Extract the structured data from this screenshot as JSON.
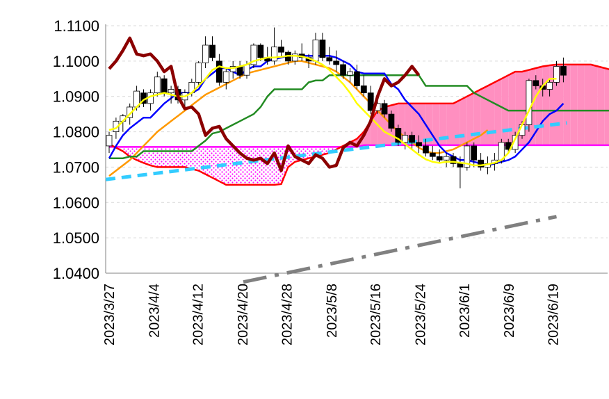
{
  "chart_data": {
    "type": "candlestick",
    "title": "",
    "xlabel": "",
    "ylabel": "",
    "ylim": [
      1.04,
      1.11
    ],
    "yticks": [
      "1.0400",
      "1.0500",
      "1.0600",
      "1.0700",
      "1.0800",
      "1.0900",
      "1.1000",
      "1.1100"
    ],
    "xticks": [
      "2023/3/27",
      "2023/4/4",
      "2023/4/12",
      "2023/4/20",
      "2023/4/28",
      "2023/5/8",
      "2023/5/16",
      "2023/5/24",
      "2023/6/1",
      "2023/6/9",
      "2023/6/19"
    ],
    "grid": true,
    "legend": "none",
    "colors": {
      "candle_up": "#ffffff",
      "candle_down": "#000000",
      "chikou": "#8b0000",
      "span_a": "#ff0000",
      "span_b": "#ff00ff",
      "cloud_bull": "#ff8fc0",
      "cloud_bear": "#ffb6e6",
      "kijun": "#228b22",
      "tenkan": "#0000ff",
      "ma_short": "#ffff00",
      "ma_long": "#ff9900",
      "trend_upper": "#33ccff",
      "trend_lower": "#808080"
    },
    "candles": [
      [
        1.076,
        1.08,
        1.074,
        1.079
      ],
      [
        1.08,
        1.084,
        1.078,
        1.083
      ],
      [
        1.083,
        1.085,
        1.08,
        1.0845
      ],
      [
        1.084,
        1.088,
        1.082,
        1.087
      ],
      [
        1.087,
        1.093,
        1.086,
        1.0915
      ],
      [
        1.091,
        1.092,
        1.087,
        1.088
      ],
      [
        1.088,
        1.092,
        1.086,
        1.091
      ],
      [
        1.091,
        1.097,
        1.09,
        1.0955
      ],
      [
        1.095,
        1.096,
        1.09,
        1.091
      ],
      [
        1.091,
        1.093,
        1.088,
        1.092
      ],
      [
        1.092,
        1.093,
        1.088,
        1.089
      ],
      [
        1.089,
        1.092,
        1.087,
        1.091
      ],
      [
        1.091,
        1.095,
        1.09,
        1.094
      ],
      [
        1.094,
        1.1,
        1.093,
        1.0995
      ],
      [
        1.0995,
        1.107,
        1.098,
        1.1045
      ],
      [
        1.1045,
        1.107,
        1.1,
        1.101
      ],
      [
        1.1,
        1.102,
        1.093,
        1.094
      ],
      [
        1.094,
        1.098,
        1.092,
        1.097
      ],
      [
        1.097,
        1.1,
        1.095,
        1.0985
      ],
      [
        1.0985,
        1.1,
        1.095,
        1.096
      ],
      [
        1.096,
        1.1,
        1.095,
        1.099
      ],
      [
        1.099,
        1.105,
        1.098,
        1.1045
      ],
      [
        1.1045,
        1.105,
        1.1,
        1.101
      ],
      [
        1.101,
        1.104,
        1.099,
        1.1
      ],
      [
        1.1,
        1.1095,
        1.099,
        1.104
      ],
      [
        1.104,
        1.106,
        1.101,
        1.1025
      ],
      [
        1.1025,
        1.103,
        1.099,
        1.1
      ],
      [
        1.1,
        1.103,
        1.099,
        1.102
      ],
      [
        1.102,
        1.105,
        1.1,
        1.101
      ],
      [
        1.101,
        1.102,
        1.098,
        1.1
      ],
      [
        1.1,
        1.108,
        1.099,
        1.106
      ],
      [
        1.106,
        1.108,
        1.1,
        1.101
      ],
      [
        1.101,
        1.104,
        1.099,
        1.1
      ],
      [
        1.1,
        1.103,
        1.097,
        1.099
      ],
      [
        1.099,
        1.1,
        1.095,
        1.096
      ],
      [
        1.096,
        1.098,
        1.094,
        1.097
      ],
      [
        1.097,
        1.099,
        1.092,
        1.093
      ],
      [
        1.093,
        1.096,
        1.09,
        1.091
      ],
      [
        1.091,
        1.093,
        1.085,
        1.086
      ],
      [
        1.086,
        1.09,
        1.085,
        1.088
      ],
      [
        1.088,
        1.089,
        1.084,
        1.085
      ],
      [
        1.085,
        1.086,
        1.08,
        1.081
      ],
      [
        1.081,
        1.082,
        1.076,
        1.077
      ],
      [
        1.077,
        1.08,
        1.075,
        1.079
      ],
      [
        1.079,
        1.08,
        1.075,
        1.077
      ],
      [
        1.077,
        1.079,
        1.074,
        1.076
      ],
      [
        1.076,
        1.078,
        1.073,
        1.074
      ],
      [
        1.074,
        1.076,
        1.072,
        1.073
      ],
      [
        1.073,
        1.075,
        1.071,
        1.072
      ],
      [
        1.072,
        1.074,
        1.07,
        1.073
      ],
      [
        1.073,
        1.074,
        1.07,
        1.071
      ],
      [
        1.071,
        1.073,
        1.064,
        1.07
      ],
      [
        1.07,
        1.077,
        1.069,
        1.076
      ],
      [
        1.076,
        1.077,
        1.07,
        1.072
      ],
      [
        1.072,
        1.074,
        1.069,
        1.07
      ],
      [
        1.07,
        1.073,
        1.068,
        1.071
      ],
      [
        1.071,
        1.074,
        1.069,
        1.072
      ],
      [
        1.072,
        1.078,
        1.071,
        1.077
      ],
      [
        1.077,
        1.078,
        1.074,
        1.075
      ],
      [
        1.075,
        1.08,
        1.074,
        1.079
      ],
      [
        1.079,
        1.083,
        1.078,
        1.082
      ],
      [
        1.082,
        1.095,
        1.08,
        1.0945
      ],
      [
        1.0945,
        1.096,
        1.092,
        1.093
      ],
      [
        1.093,
        1.095,
        1.09,
        1.092
      ],
      [
        1.092,
        1.095,
        1.09,
        1.094
      ],
      [
        1.094,
        1.1,
        1.093,
        1.0985
      ],
      [
        1.0985,
        1.101,
        1.094,
        1.096
      ]
    ],
    "span_a": [
      1.0765,
      1.0755,
      1.0745,
      1.073,
      1.072,
      1.0712,
      1.0705,
      1.07,
      1.07,
      1.07,
      1.07,
      1.07,
      1.0695,
      1.069,
      1.068,
      1.067,
      1.066,
      1.065,
      1.065,
      1.065,
      1.065,
      1.065,
      1.065,
      1.065,
      1.065,
      1.0652,
      1.07,
      1.0715,
      1.072,
      1.0725,
      1.073,
      1.0735,
      1.074,
      1.075,
      1.076,
      1.077,
      1.078,
      1.08,
      1.083,
      1.086,
      1.087,
      1.0875,
      1.088,
      1.088,
      1.088,
      1.088,
      1.088,
      1.088,
      1.088,
      1.088,
      1.088,
      1.089,
      1.09,
      1.091,
      1.092,
      1.093,
      1.094,
      1.095,
      1.096,
      1.097,
      1.097,
      1.0975,
      1.098,
      1.0985,
      1.0988,
      1.099,
      1.099,
      1.099,
      1.099,
      1.099,
      1.099,
      1.0985,
      1.098,
      1.0975,
      1.097,
      1.0965,
      1.096,
      1.0955,
      1.094,
      1.0925,
      1.091,
      1.0905,
      1.09,
      1.0895,
      1.087,
      1.0852,
      1.085,
      1.0848
    ],
    "span_b": [
      1.0757,
      1.0757,
      1.0757,
      1.0757,
      1.0757,
      1.0757,
      1.0757,
      1.0757,
      1.0757,
      1.0757,
      1.0757,
      1.0757,
      1.0757,
      1.0757,
      1.0757,
      1.0757,
      1.0757,
      1.0757,
      1.0757,
      1.0757,
      1.0757,
      1.0757,
      1.0757,
      1.0757,
      1.0757,
      1.0757,
      1.0757,
      1.0757,
      1.0757,
      1.0757,
      1.0757,
      1.0757,
      1.0757,
      1.0757,
      1.0757,
      1.0757,
      1.0757,
      1.0762,
      1.0762,
      1.0762,
      1.0762,
      1.0762,
      1.0762,
      1.0762,
      1.0762,
      1.0762,
      1.0762,
      1.0762,
      1.0762,
      1.0762,
      1.0762,
      1.0762,
      1.0762,
      1.0762,
      1.0762,
      1.0762,
      1.0762,
      1.0762,
      1.0762,
      1.0762,
      1.0762,
      1.0762,
      1.0762,
      1.0762,
      1.0762,
      1.0762,
      1.0762,
      1.0762,
      1.0762,
      1.0762,
      1.0762,
      1.0762,
      1.0762,
      1.0762,
      1.0762,
      1.0762,
      1.0762,
      1.0762,
      1.0762,
      1.0762,
      1.0762,
      1.0762,
      1.0762,
      1.0762,
      1.0762,
      1.0762,
      1.0762,
      1.0762
    ],
    "chikou": [
      1.0978,
      1.1,
      1.103,
      1.1065,
      1.102,
      1.1015,
      1.102,
      1.1,
      1.097,
      1.0985,
      1.09,
      1.0865,
      1.087,
      1.085,
      1.079,
      1.081,
      1.0815,
      1.078,
      1.076,
      1.074,
      1.0725,
      1.072,
      1.0725,
      1.071,
      1.074,
      1.069,
      1.076,
      1.073,
      1.072,
      1.071,
      1.0735,
      1.0725,
      1.07,
      1.0705,
      1.0755,
      1.077,
      1.076,
      1.079,
      1.083,
      1.09,
      1.095,
      1.093,
      1.094,
      1.096,
      1.0985,
      1.096
    ],
    "kijun": [
      1.0725,
      1.0725,
      1.0725,
      1.073,
      1.073,
      1.0745,
      1.0745,
      1.0745,
      1.0745,
      1.0745,
      1.0745,
      1.0745,
      1.0745,
      1.076,
      1.0775,
      1.0795,
      1.08,
      1.081,
      1.082,
      1.083,
      1.084,
      1.085,
      1.087,
      1.09,
      1.092,
      1.092,
      1.092,
      1.092,
      1.092,
      1.094,
      1.0945,
      1.0945,
      1.096,
      1.096,
      1.096,
      1.096,
      1.096,
      1.096,
      1.096,
      1.096,
      1.096,
      1.096,
      1.096,
      1.096,
      1.096,
      1.096,
      1.093,
      1.093,
      1.093,
      1.093,
      1.093,
      1.093,
      1.093,
      1.091,
      1.09,
      1.089,
      1.088,
      1.087,
      1.086,
      1.086,
      1.086,
      1.086,
      1.086,
      1.086,
      1.086,
      1.086,
      1.086,
      1.086,
      1.086,
      1.086,
      1.086,
      1.086,
      1.086,
      1.086,
      1.086,
      1.086,
      1.086,
      1.086,
      1.083,
      1.0825,
      1.0825,
      1.0825,
      1.0825,
      1.0825,
      1.0825
    ],
    "tenkan": [
      1.0725,
      1.076,
      1.079,
      1.081,
      1.0825,
      1.084,
      1.084,
      1.086,
      1.088,
      1.0895,
      1.091,
      1.091,
      1.091,
      1.092,
      1.095,
      1.0965,
      1.098,
      1.098,
      1.097,
      1.096,
      1.0975,
      1.0985,
      1.0985,
      1.1,
      1.1005,
      1.101,
      1.1015,
      1.1015,
      1.1015,
      1.1015,
      1.1015,
      1.1015,
      1.1015,
      1.101,
      1.1,
      1.099,
      1.097,
      1.0965,
      1.0965,
      1.0965,
      1.0965,
      1.0935,
      1.092,
      1.089,
      1.087,
      1.085,
      1.082,
      1.079,
      1.076,
      1.074,
      1.073,
      1.072,
      1.072,
      1.0715,
      1.071,
      1.0705,
      1.071,
      1.0715,
      1.072,
      1.073,
      1.075,
      1.077,
      1.08,
      1.083,
      1.085,
      1.086,
      1.088
    ],
    "ma_short": [
      1.0805,
      1.081,
      1.083,
      1.085,
      1.087,
      1.089,
      1.09,
      1.0905,
      1.091,
      1.0905,
      1.09,
      1.09,
      1.091,
      1.093,
      1.095,
      1.0975,
      1.0985,
      1.098,
      1.098,
      1.0985,
      1.099,
      1.1,
      1.1005,
      1.101,
      1.101,
      1.1012,
      1.1015,
      1.1015,
      1.1013,
      1.1008,
      1.1,
      1.099,
      1.0975,
      1.0955,
      1.0935,
      1.091,
      1.088,
      1.086,
      1.084,
      1.082,
      1.08,
      1.079,
      1.078,
      1.0765,
      1.075,
      1.0735,
      1.0722,
      1.0715,
      1.0712,
      1.0715,
      1.0715,
      1.0712,
      1.071,
      1.0705,
      1.0705,
      1.0708,
      1.0712,
      1.072,
      1.074,
      1.078,
      1.082,
      1.086,
      1.09,
      1.093,
      1.095,
      1.095
    ],
    "ma_long": [
      1.0675,
      1.069,
      1.0705,
      1.072,
      1.074,
      1.076,
      1.078,
      1.08,
      1.0815,
      1.083,
      1.0845,
      1.086,
      1.0875,
      1.089,
      1.0905,
      1.0915,
      1.0925,
      1.0935,
      1.0945,
      1.0955,
      1.0965,
      1.097,
      1.0975,
      1.098,
      1.0985,
      1.099,
      1.0995,
      1.1,
      1.1,
      1.0995,
      1.099,
      1.0985,
      1.098,
      1.097,
      1.0955,
      1.094,
      1.092,
      1.09,
      1.088,
      1.086,
      1.084,
      1.082,
      1.08,
      1.0785,
      1.077,
      1.0755,
      1.0745,
      1.074,
      1.074,
      1.0745,
      1.075,
      1.076,
      1.077,
      1.078,
      1.079,
      1.0805
    ],
    "trend_upper": [
      [
        1.0665,
        1.0825
      ]
    ],
    "trend_lower": [
      [
        1.0375,
        1.056
      ]
    ]
  }
}
